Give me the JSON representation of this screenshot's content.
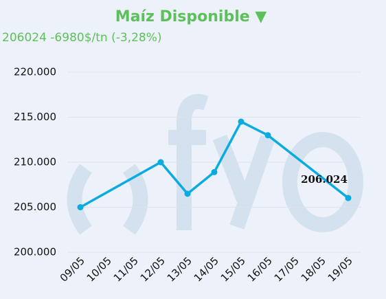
{
  "chart_data": {
    "type": "line",
    "title": "Maíz Disponible ▼",
    "subtitle": "206024 -6980$/tn (-3,28%)",
    "x_categories": [
      "09/05",
      "10/05",
      "11/05",
      "12/05",
      "13/05",
      "14/05",
      "15/05",
      "16/05",
      "17/05",
      "18/05",
      "19/05"
    ],
    "x": [
      "09/05",
      "12/05",
      "13/05",
      "14/05",
      "15/05",
      "16/05",
      "19/05"
    ],
    "values": [
      205000,
      210000,
      206500,
      208900,
      214500,
      213000,
      206024
    ],
    "value_labels": [
      null,
      null,
      null,
      null,
      null,
      null,
      "206.024"
    ],
    "color": "#0aabe0",
    "ylim": [
      200000,
      220000
    ],
    "yticks": [
      {
        "value": 200000,
        "label": "200.000"
      },
      {
        "value": 205000,
        "label": "205.000"
      },
      {
        "value": 210000,
        "label": "210.000"
      },
      {
        "value": 215000,
        "label": "215.000"
      },
      {
        "value": 220000,
        "label": "220.000"
      }
    ],
    "grid": true
  }
}
